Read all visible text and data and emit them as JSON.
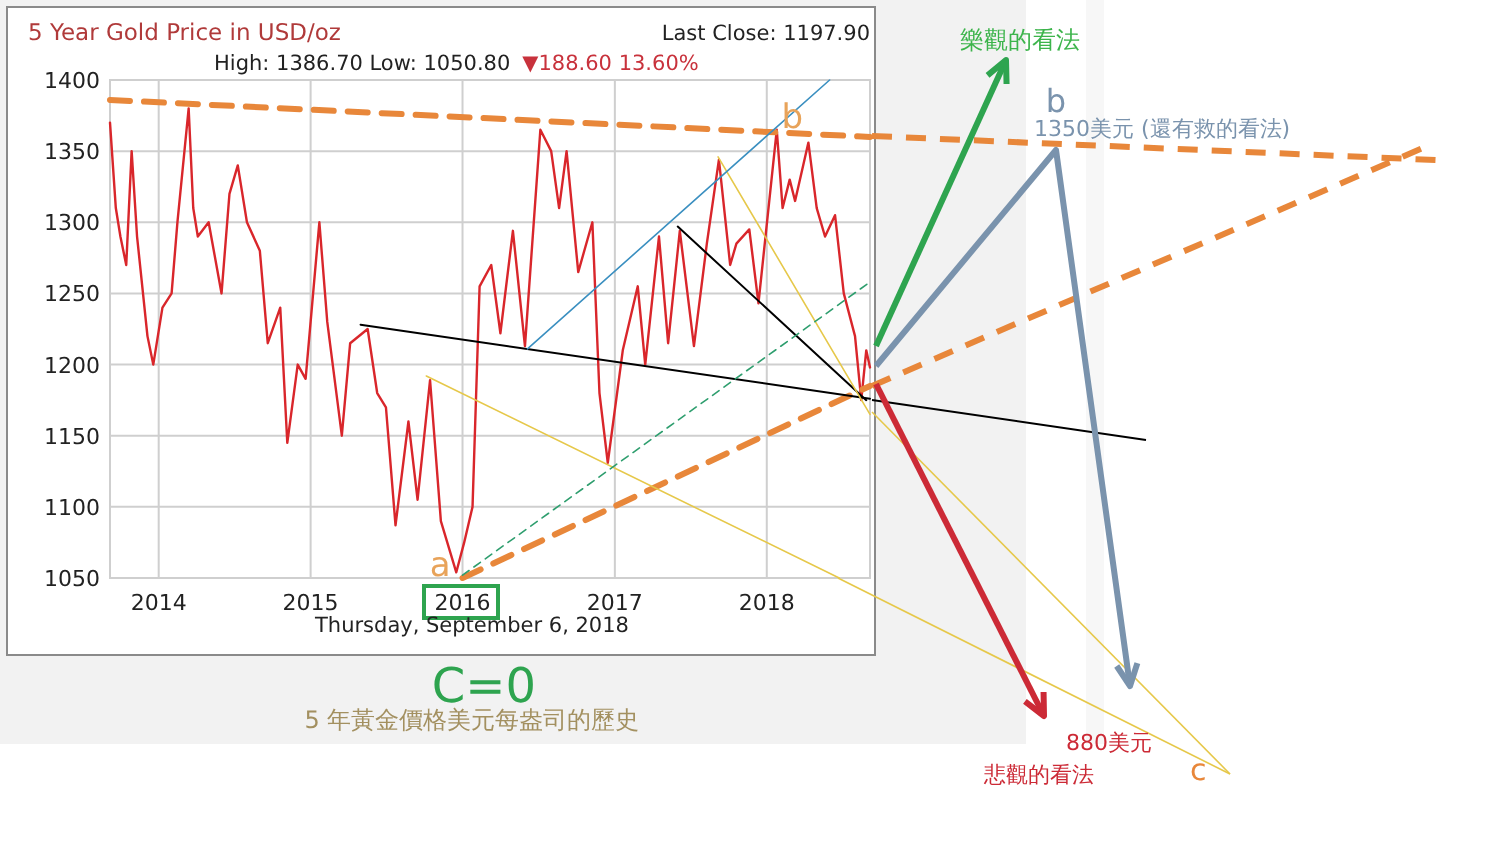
{
  "chart_data": {
    "type": "line",
    "title": "5 Year Gold Price in USD/oz",
    "subtitle": "High: 1386.70 Low: 1050.80",
    "xlim": [
      "2013-09-06",
      "2018-09-06"
    ],
    "xticks": [
      {
        "value": "2014",
        "label": "2014"
      },
      {
        "value": "2015",
        "label": "2015"
      },
      {
        "value": "2016",
        "label": "2016"
      },
      {
        "value": "2017",
        "label": "2017"
      },
      {
        "value": "2018",
        "label": "2018"
      }
    ],
    "ylim": [
      1050,
      1400
    ],
    "yticks": [
      1050,
      1100,
      1150,
      1200,
      1250,
      1300,
      1350,
      1400
    ],
    "grid": true,
    "marker": "none",
    "series": [
      {
        "color": "#d9262b",
        "line_style": "solid",
        "x": [
          "2013-09-06",
          "2013-09-20",
          "2013-10-01",
          "2013-10-15",
          "2013-10-28",
          "2013-11-10",
          "2013-12-05",
          "2013-12-19",
          "2014-01-10",
          "2014-02-01",
          "2014-02-15",
          "2014-03-14",
          "2014-03-25",
          "2014-04-05",
          "2014-05-01",
          "2014-06-01",
          "2014-06-20",
          "2014-07-10",
          "2014-08-01",
          "2014-09-01",
          "2014-09-20",
          "2014-10-20",
          "2014-11-06",
          "2014-12-01",
          "2014-12-20",
          "2015-01-22",
          "2015-02-10",
          "2015-03-17",
          "2015-04-06",
          "2015-05-18",
          "2015-06-10",
          "2015-07-01",
          "2015-07-24",
          "2015-08-24",
          "2015-09-15",
          "2015-10-15",
          "2015-11-10",
          "2015-12-17",
          "2016-01-05",
          "2016-01-25",
          "2016-02-11",
          "2016-03-10",
          "2016-04-01",
          "2016-05-01",
          "2016-05-30",
          "2016-07-06",
          "2016-08-01",
          "2016-08-20",
          "2016-09-07",
          "2016-10-05",
          "2016-11-08",
          "2016-11-25",
          "2016-12-15",
          "2017-01-20",
          "2017-02-25",
          "2017-03-15",
          "2017-04-17",
          "2017-05-09",
          "2017-06-06",
          "2017-07-10",
          "2017-08-10",
          "2017-09-08",
          "2017-10-05",
          "2017-10-20",
          "2017-11-20",
          "2017-12-12",
          "2018-01-25",
          "2018-02-08",
          "2018-02-25",
          "2018-03-10",
          "2018-04-11",
          "2018-05-01",
          "2018-05-21",
          "2018-06-14",
          "2018-07-05",
          "2018-08-01",
          "2018-08-16",
          "2018-08-28",
          "2018-09-06"
        ],
        "values": [
          1370,
          1310,
          1290,
          1270,
          1350,
          1290,
          1220,
          1200,
          1240,
          1250,
          1300,
          1380,
          1310,
          1290,
          1300,
          1250,
          1320,
          1340,
          1300,
          1280,
          1215,
          1240,
          1145,
          1200,
          1190,
          1300,
          1230,
          1150,
          1215,
          1225,
          1180,
          1170,
          1087,
          1160,
          1105,
          1189,
          1090,
          1054,
          1075,
          1100,
          1255,
          1270,
          1222,
          1294,
          1213,
          1365,
          1350,
          1310,
          1350,
          1265,
          1300,
          1180,
          1131,
          1210,
          1255,
          1200,
          1290,
          1215,
          1294,
          1213,
          1285,
          1344,
          1270,
          1285,
          1295,
          1243,
          1365,
          1310,
          1330,
          1315,
          1356,
          1310,
          1290,
          1305,
          1250,
          1220,
          1175,
          1210,
          1198
        ]
      },
      {
        "color": "#e8873a",
        "line_style": "dashed",
        "x": [
          "2013-09-06",
          "2018-09-06"
        ],
        "values": [
          1386,
          1360
        ]
      },
      {
        "color": "#e8873a",
        "line_style": "dashed",
        "x": [
          "2016-01-01",
          "2018-09-06"
        ],
        "values": [
          1050,
          1185
        ]
      },
      {
        "color": "#000000",
        "line_style": "solid",
        "x": [
          "2015-05-01",
          "2018-09-06"
        ],
        "values": [
          1228,
          1176
        ]
      },
      {
        "color": "#000000",
        "line_style": "solid",
        "x": [
          "2017-06-01",
          "2018-08-28"
        ],
        "values": [
          1297,
          1175
        ]
      },
      {
        "color": "#e6c84a",
        "line_style": "solid",
        "x": [
          "2015-10-06",
          "2018-06-24"
        ],
        "values": [
          1192,
          1050
        ]
      },
      {
        "color": "#e6c84a",
        "line_style": "solid",
        "x": [
          "2017-09-06",
          "2018-09-06"
        ],
        "values": [
          1346,
          1165
        ]
      },
      {
        "color": "#3a8fc0",
        "line_style": "solid",
        "x": [
          "2016-06-05",
          "2018-06-01"
        ],
        "values": [
          1211,
          1400
        ]
      },
      {
        "color": "#2e9e6e",
        "line_style": "dashed",
        "x": [
          "2016-01-01",
          "2018-09-06"
        ],
        "values": [
          1052,
          1258
        ]
      }
    ],
    "annotations": [
      "Last Close: 1197.90",
      "▼188.60 13.60%",
      "Thursday, September 6, 2018",
      "C=0",
      "5 年黃金價格美元每盎司的歷史",
      "樂觀的看法",
      "b",
      "1350美元 (還有救的看法)",
      "880美元",
      "悲觀的看法",
      "c",
      {
        "text": "a",
        "x": "2015-12-17",
        "y": 1050
      },
      {
        "text": "b",
        "x": "2018-04-11",
        "y": 1365
      }
    ]
  }
}
